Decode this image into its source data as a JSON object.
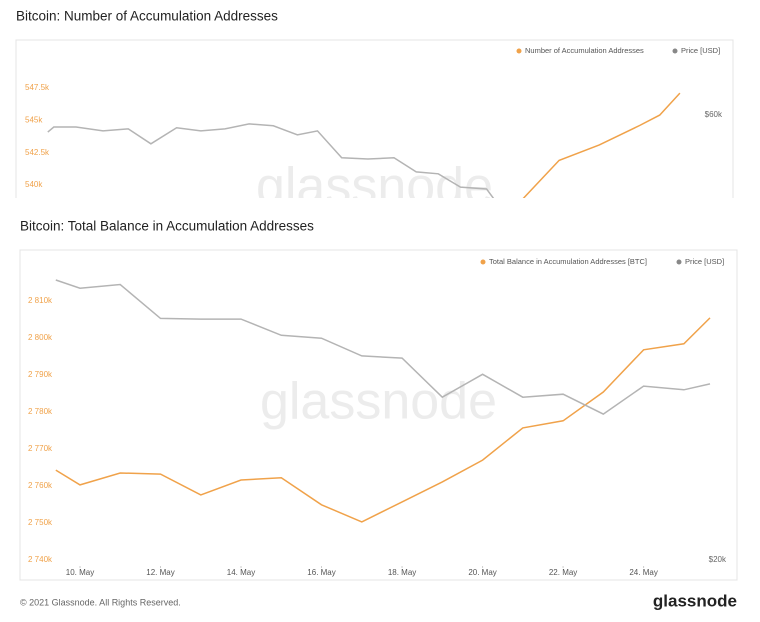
{
  "chart_data": [
    {
      "type": "line",
      "title": "Bitcoin: Number of Accumulation Addresses",
      "watermark": "glassnode",
      "xlim": [
        8.51,
        26.32
      ],
      "ylim": [
        539000,
        551200
      ],
      "y2lim": [
        38700,
        79200
      ],
      "yticks": [
        {
          "value": 540000,
          "label": "540k"
        },
        {
          "value": 542500,
          "label": "542.5k"
        },
        {
          "value": 545000,
          "label": "545k"
        },
        {
          "value": 547500,
          "label": "547.5k"
        }
      ],
      "y2ticks": [
        {
          "value": 60000,
          "label": "$60k"
        }
      ],
      "series": [
        {
          "name": "Number of Accumulation Addresses",
          "color": "#f0a24a",
          "x": [
            21,
            22,
            23,
            24,
            24.5,
            25
          ],
          "values": [
            538600,
            541900,
            543100,
            544600,
            545400,
            547100
          ]
        },
        {
          "name": "Price [USD]",
          "color": "#b4b4b4",
          "axis": "y2",
          "x": [
            9.3,
            9.45,
            10,
            10.67,
            11.3,
            11.86,
            12.5,
            13.1,
            13.7,
            14.3,
            14.9,
            15.5,
            16,
            16.6,
            17.25,
            17.9,
            18.45,
            19,
            19.55,
            20.2,
            20.4
          ],
          "values": [
            55600,
            56900,
            56900,
            55900,
            56400,
            52600,
            56700,
            55900,
            56400,
            57700,
            57200,
            54900,
            55900,
            49000,
            48700,
            49000,
            45400,
            44900,
            41500,
            41000,
            38200
          ]
        }
      ]
    },
    {
      "type": "line",
      "title": "Bitcoin: Total Balance in Accumulation Addresses",
      "watermark": "glassnode",
      "xlim": [
        8.51,
        26.32
      ],
      "ylim": [
        2740000,
        2822400
      ],
      "y2lim": [
        20000,
        61400
      ],
      "x": [
        9.4,
        10,
        11,
        12,
        13,
        14,
        15,
        16,
        17,
        18,
        19,
        20,
        21,
        22,
        23,
        24,
        25,
        25.65
      ],
      "xticks": [
        {
          "value": 10,
          "label": "10. May"
        },
        {
          "value": 12,
          "label": "12. May"
        },
        {
          "value": 14,
          "label": "14. May"
        },
        {
          "value": 16,
          "label": "16. May"
        },
        {
          "value": 18,
          "label": "18. May"
        },
        {
          "value": 20,
          "label": "20. May"
        },
        {
          "value": 22,
          "label": "22. May"
        },
        {
          "value": 24,
          "label": "24. May"
        }
      ],
      "yticks": [
        {
          "value": 2740000,
          "label": "2 740k"
        },
        {
          "value": 2750000,
          "label": "2 750k"
        },
        {
          "value": 2760000,
          "label": "2 760k"
        },
        {
          "value": 2770000,
          "label": "2 770k"
        },
        {
          "value": 2780000,
          "label": "2 780k"
        },
        {
          "value": 2790000,
          "label": "2 790k"
        },
        {
          "value": 2800000,
          "label": "2 800k"
        },
        {
          "value": 2810000,
          "label": "2 810k"
        }
      ],
      "y2ticks": [
        {
          "value": 20000,
          "label": "$20k"
        }
      ],
      "series": [
        {
          "name": "Total Balance in Accumulation Addresses [BTC]",
          "color": "#f0a24a",
          "values": [
            2764300,
            2760300,
            2763500,
            2763200,
            2757600,
            2761600,
            2762200,
            2754900,
            2750300,
            2755700,
            2761100,
            2767000,
            2775700,
            2777600,
            2785400,
            2796800,
            2798400,
            2805400
          ]
        },
        {
          "name": "Price [USD]",
          "color": "#b4b4b4",
          "axis": "y2",
          "values": [
            58000,
            56900,
            57400,
            52800,
            52700,
            52700,
            50500,
            50100,
            47700,
            47400,
            42100,
            45200,
            42100,
            42500,
            39800,
            43600,
            43100,
            43900
          ]
        }
      ]
    }
  ],
  "footer": "© 2021 Glassnode. All Rights Reserved.",
  "logo": "glassnode"
}
